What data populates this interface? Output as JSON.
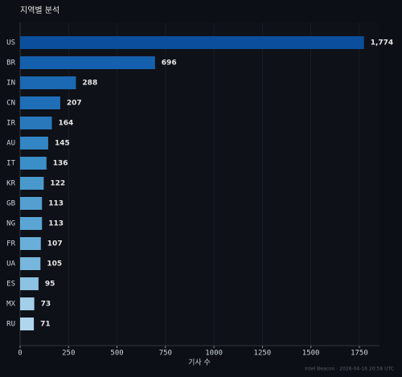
{
  "chart_data": {
    "type": "hbar",
    "title": "지역별 분석",
    "x_label": "기사 수",
    "footer": "Intel Beacon · 2026-04-16 20:58 UTC",
    "categories": [
      "US",
      "BR",
      "IN",
      "CN",
      "IR",
      "AU",
      "IT",
      "KR",
      "GB",
      "NG",
      "FR",
      "UA",
      "ES",
      "MX",
      "RU"
    ],
    "values": [
      1774,
      696,
      288,
      207,
      164,
      145,
      136,
      122,
      113,
      113,
      107,
      105,
      95,
      73,
      71
    ],
    "value_labels": [
      "1,774",
      "696",
      "288",
      "207",
      "164",
      "145",
      "136",
      "122",
      "113",
      "113",
      "107",
      "105",
      "95",
      "73",
      "71"
    ],
    "colors": [
      "#0b4f9c",
      "#1560ad",
      "#1b68b3",
      "#1f6fb8",
      "#2878bc",
      "#3385c3",
      "#3b8fc8",
      "#4a99cd",
      "#539fd0",
      "#5aa5d4",
      "#6aafd9",
      "#77b6dd",
      "#8dc2e3",
      "#a3cfea",
      "#b0d6ed"
    ],
    "xlim": [
      0,
      1854
    ],
    "xticks": [
      0,
      250,
      500,
      750,
      1000,
      1250,
      1500,
      1750
    ],
    "grid": true
  }
}
